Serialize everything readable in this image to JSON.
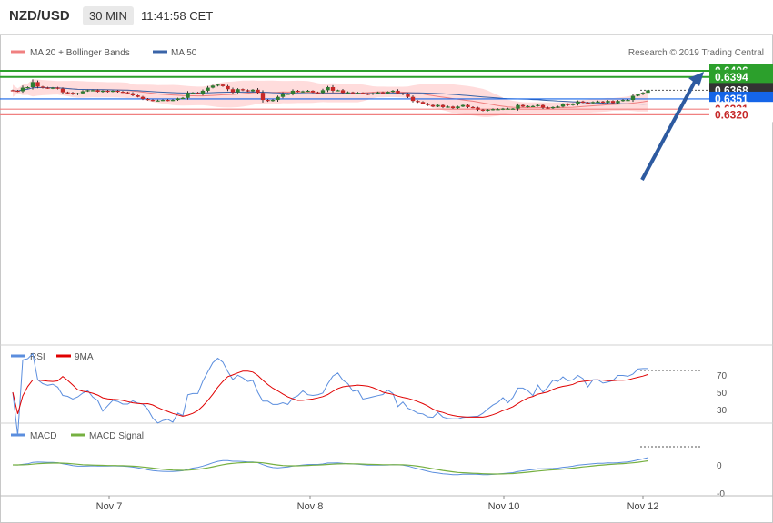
{
  "header": {
    "symbol": "NZD/USD",
    "timeframe": "30 MIN",
    "time": "11:41:58 CET"
  },
  "credit": "Research © 2019 Trading Central",
  "colors": {
    "up": "#2e7d32",
    "down": "#c62828",
    "band": "#ffd6d6",
    "ma20": "#f08080",
    "ma50": "#3a64a8",
    "target": "#2ca02c",
    "pivot": "#1565e8",
    "support": "#f08080",
    "rsi": "#5b8ede",
    "rsi_ma": "#e00000",
    "macd": "#5b8ede",
    "macd_signal": "#76b041",
    "arrow": "#2d5aa0"
  },
  "legend": {
    "bb_label": "MA 20 + Bollinger Bands",
    "ma50_label": "MA 50"
  },
  "levels": [
    {
      "label": "0.6406",
      "value": 0.6406,
      "kind": "target"
    },
    {
      "label": "0.6394",
      "value": 0.6394,
      "kind": "target"
    },
    {
      "label": "0.6368",
      "value": 0.6368,
      "kind": "last"
    },
    {
      "label": "0.6351",
      "value": 0.6351,
      "kind": "pivot"
    },
    {
      "label": "0.6331",
      "value": 0.6331,
      "kind": "support"
    },
    {
      "label": "0.6320",
      "value": 0.632,
      "kind": "support"
    }
  ],
  "x_labels": [
    "Nov 7",
    "Nov 8",
    "Nov 10",
    "Nov 12"
  ],
  "rsi_panel": {
    "label": "RSI",
    "ma_label": "9MA",
    "ticks": [
      "70",
      "50",
      "30"
    ]
  },
  "macd_panel": {
    "label": "MACD",
    "signal_label": "MACD Signal",
    "ticks": [
      "0",
      "-0"
    ]
  },
  "chart_data": {
    "type": "candlestick",
    "ylim": [
      0.6308,
      0.6415
    ],
    "close_path": [
      0.6367,
      0.6366,
      0.6373,
      0.6374,
      0.6384,
      0.6375,
      0.6373,
      0.6372,
      0.6373,
      0.6371,
      0.6364,
      0.6363,
      0.636,
      0.6362,
      0.6366,
      0.6368,
      0.6368,
      0.6365,
      0.6367,
      0.6365,
      0.6367,
      0.6365,
      0.6364,
      0.6362,
      0.6358,
      0.6355,
      0.6351,
      0.6349,
      0.6348,
      0.6348,
      0.6349,
      0.6348,
      0.6349,
      0.6352,
      0.6353,
      0.6363,
      0.6363,
      0.6361,
      0.6367,
      0.6373,
      0.6377,
      0.6379,
      0.6376,
      0.637,
      0.6364,
      0.637,
      0.6368,
      0.6366,
      0.6369,
      0.6363,
      0.6349,
      0.6347,
      0.6349,
      0.6355,
      0.6361,
      0.6361,
      0.6367,
      0.6365,
      0.6366,
      0.6367,
      0.6364,
      0.6363,
      0.6368,
      0.6374,
      0.6367,
      0.6368,
      0.6363,
      0.6364,
      0.6362,
      0.6363,
      0.6361,
      0.636,
      0.6362,
      0.6364,
      0.6362,
      0.6365,
      0.6367,
      0.6362,
      0.636,
      0.6355,
      0.6347,
      0.6345,
      0.6342,
      0.6339,
      0.6336,
      0.6339,
      0.6335,
      0.6336,
      0.6333,
      0.6336,
      0.6339,
      0.6335,
      0.6334,
      0.633,
      0.6328,
      0.633,
      0.6331,
      0.6331,
      0.6332,
      0.6332,
      0.6332,
      0.6339,
      0.6336,
      0.6337,
      0.6337,
      0.6339,
      0.6334,
      0.6333,
      0.6335,
      0.6336,
      0.6341,
      0.6339,
      0.6341,
      0.6346,
      0.6344,
      0.6343,
      0.6345,
      0.6346,
      0.6344,
      0.6347,
      0.6343,
      0.6347,
      0.6349,
      0.6349,
      0.6357,
      0.636,
      0.6363,
      0.6368
    ]
  }
}
